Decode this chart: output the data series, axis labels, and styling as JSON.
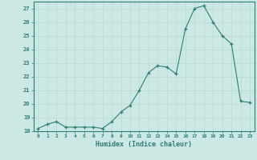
{
  "x": [
    0,
    1,
    2,
    3,
    4,
    5,
    6,
    7,
    8,
    9,
    10,
    11,
    12,
    13,
    14,
    15,
    16,
    17,
    18,
    19,
    20,
    21,
    22,
    23
  ],
  "y": [
    18.2,
    18.5,
    18.7,
    18.3,
    18.3,
    18.3,
    18.3,
    18.2,
    18.7,
    19.4,
    19.9,
    21.0,
    22.3,
    22.8,
    22.7,
    22.2,
    25.5,
    27.0,
    27.2,
    26.0,
    25.0,
    24.4,
    20.2,
    20.1
  ],
  "xlabel": "Humidex (Indice chaleur)",
  "ylim": [
    18,
    27.5
  ],
  "xlim": [
    -0.5,
    23.5
  ],
  "yticks": [
    18,
    19,
    20,
    21,
    22,
    23,
    24,
    25,
    26,
    27
  ],
  "xticks": [
    0,
    1,
    2,
    3,
    4,
    5,
    6,
    7,
    8,
    9,
    10,
    11,
    12,
    13,
    14,
    15,
    16,
    17,
    18,
    19,
    20,
    21,
    22,
    23
  ],
  "xtick_labels": [
    "0",
    "1",
    "2",
    "3",
    "4",
    "5",
    "6",
    "7",
    "8",
    "9",
    "10",
    "11",
    "12",
    "13",
    "14",
    "15",
    "16",
    "17",
    "18",
    "19",
    "20",
    "21",
    "22",
    "23"
  ],
  "line_color": "#2e7d6e",
  "marker": "+",
  "bg_color": "#cce8e4",
  "grid_color": "#b8d8d4",
  "text_color": "#2e7d6e"
}
